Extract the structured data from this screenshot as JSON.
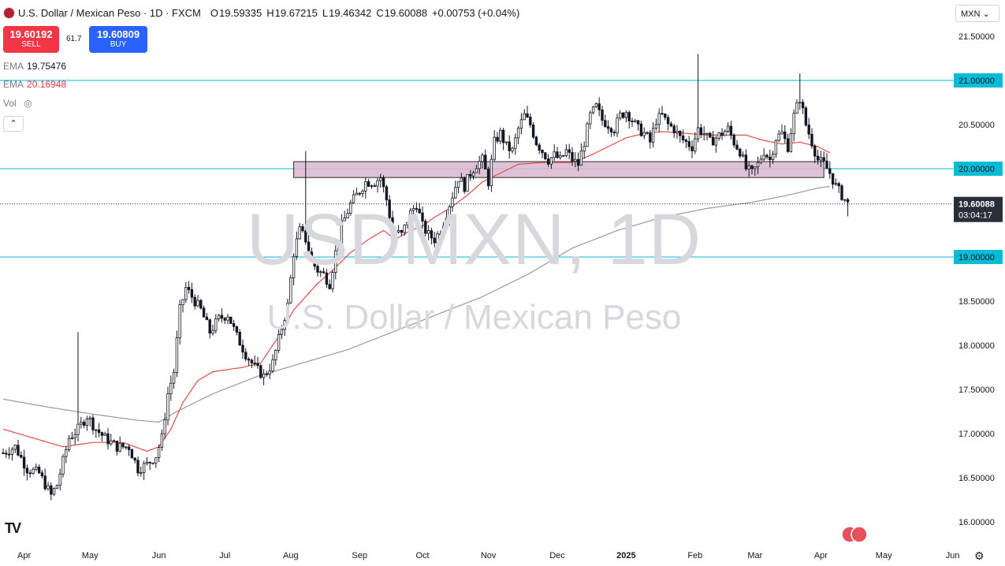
{
  "header": {
    "symbol_title": "U.S. Dollar / Mexican Peso · 1D · FXCM",
    "open_label": "O",
    "open": "19.59335",
    "high_label": "H",
    "high": "19.67215",
    "low_label": "L",
    "low": "19.46342",
    "close_label": "C",
    "close": "19.60088",
    "change": "+0.00753 (+0.04%)"
  },
  "trade": {
    "sell_price": "19.60192",
    "sell_label": "SELL",
    "spread": "61.7",
    "buy_price": "19.60809",
    "buy_label": "BUY"
  },
  "indicators": {
    "ema1_label": "EMA",
    "ema1_value": "19.75476",
    "ema2_label": "EMA",
    "ema2_value": "20.16948",
    "vol_label": "Vol",
    "ema2_color": "#f23645"
  },
  "currency_button": "MXN",
  "watermark": {
    "symbol": "USDMXN, 1D",
    "name": "U.S. Dollar / Mexican Peso"
  },
  "colors": {
    "up": "#26a69a",
    "candle": "#131722",
    "hline": "#00bcd4",
    "ema50": "#e04c4c",
    "ema200": "#9a9a9a",
    "box_fill": "#d9b7cf",
    "box_stroke": "#2a2a2a"
  },
  "chart_data": {
    "type": "candlestick",
    "title": "U.S. Dollar / Mexican Peso · 1D · FXCM",
    "ylim": [
      15.85,
      21.7
    ],
    "y_ticks": [
      "21.50000",
      "21.00000",
      "20.50000",
      "20.00000",
      "19.50000",
      "19.00000",
      "18.50000",
      "18.00000",
      "17.50000",
      "17.00000",
      "16.50000",
      "16.00000"
    ],
    "y_tick_values": [
      21.5,
      21.0,
      20.5,
      20.0,
      19.5,
      19.0,
      18.5,
      18.0,
      17.5,
      17.0,
      16.5,
      16.0
    ],
    "x_ticks": [
      "Apr",
      "May",
      "Jun",
      "Jul",
      "Aug",
      "Sep",
      "Oct",
      "Nov",
      "Dec",
      "2025",
      "Feb",
      "Mar",
      "Apr",
      "May",
      "Jun"
    ],
    "x_tick_bar_index": [
      7,
      29,
      52,
      74,
      96,
      119,
      140,
      162,
      185,
      208,
      231,
      251,
      273,
      294,
      317
    ],
    "last_price": "19.60088",
    "countdown": "03:04:17",
    "horizontal_levels": [
      {
        "value": 21.0,
        "label": "21.00000"
      },
      {
        "value": 20.0,
        "label": "20.00000"
      },
      {
        "value": 19.0,
        "label": "19.00000"
      }
    ],
    "zone": {
      "from_bar": 97,
      "to_bar": 274,
      "low": 19.9,
      "high": 20.08
    },
    "ema_fast_period": 50,
    "ema_slow_period": 200,
    "anchors": [
      [
        0,
        16.78
      ],
      [
        4,
        16.85
      ],
      [
        8,
        16.6
      ],
      [
        12,
        16.55
      ],
      [
        16,
        16.3
      ],
      [
        18,
        16.42
      ],
      [
        22,
        16.95
      ],
      [
        25,
        17.05
      ],
      [
        28,
        17.2
      ],
      [
        31,
        17.05
      ],
      [
        34,
        16.95
      ],
      [
        38,
        16.85
      ],
      [
        42,
        16.85
      ],
      [
        45,
        16.6
      ],
      [
        48,
        16.65
      ],
      [
        51,
        16.75
      ],
      [
        53,
        16.95
      ],
      [
        55,
        17.45
      ],
      [
        57,
        17.7
      ],
      [
        59,
        18.4
      ],
      [
        61,
        18.65
      ],
      [
        63,
        18.55
      ],
      [
        66,
        18.4
      ],
      [
        69,
        18.15
      ],
      [
        72,
        18.3
      ],
      [
        75,
        18.35
      ],
      [
        78,
        18.1
      ],
      [
        81,
        17.9
      ],
      [
        84,
        17.75
      ],
      [
        87,
        17.65
      ],
      [
        90,
        17.8
      ],
      [
        93,
        18.2
      ],
      [
        95,
        18.45
      ],
      [
        97,
        19.05
      ],
      [
        99,
        19.3
      ],
      [
        101,
        19.2
      ],
      [
        103,
        18.95
      ],
      [
        105,
        18.85
      ],
      [
        107,
        18.8
      ],
      [
        109,
        18.7
      ],
      [
        111,
        19.05
      ],
      [
        113,
        19.35
      ],
      [
        116,
        19.6
      ],
      [
        119,
        19.75
      ],
      [
        121,
        19.85
      ],
      [
        124,
        19.85
      ],
      [
        126,
        19.9
      ],
      [
        128,
        19.65
      ],
      [
        130,
        19.3
      ],
      [
        133,
        19.25
      ],
      [
        136,
        19.5
      ],
      [
        138,
        19.6
      ],
      [
        140,
        19.35
      ],
      [
        142,
        19.25
      ],
      [
        144,
        19.2
      ],
      [
        146,
        19.3
      ],
      [
        148,
        19.5
      ],
      [
        150,
        19.7
      ],
      [
        152,
        19.9
      ],
      [
        154,
        19.8
      ],
      [
        156,
        19.95
      ],
      [
        158,
        20.05
      ],
      [
        160,
        20.1
      ],
      [
        162,
        19.85
      ],
      [
        164,
        20.3
      ],
      [
        166,
        20.4
      ],
      [
        168,
        20.25
      ],
      [
        170,
        20.2
      ],
      [
        172,
        20.45
      ],
      [
        174,
        20.6
      ],
      [
        176,
        20.5
      ],
      [
        178,
        20.3
      ],
      [
        180,
        20.2
      ],
      [
        182,
        20.1
      ],
      [
        184,
        20.15
      ],
      [
        186,
        20.1
      ],
      [
        188,
        20.2
      ],
      [
        190,
        20.1
      ],
      [
        192,
        20.05
      ],
      [
        194,
        20.3
      ],
      [
        196,
        20.6
      ],
      [
        198,
        20.7
      ],
      [
        200,
        20.55
      ],
      [
        202,
        20.5
      ],
      [
        204,
        20.45
      ],
      [
        206,
        20.6
      ],
      [
        208,
        20.65
      ],
      [
        210,
        20.55
      ],
      [
        212,
        20.45
      ],
      [
        214,
        20.4
      ],
      [
        216,
        20.3
      ],
      [
        218,
        20.55
      ],
      [
        220,
        20.6
      ],
      [
        222,
        20.5
      ],
      [
        224,
        20.45
      ],
      [
        226,
        20.35
      ],
      [
        228,
        20.3
      ],
      [
        230,
        20.25
      ],
      [
        232,
        20.45
      ],
      [
        234,
        20.4
      ],
      [
        236,
        20.3
      ],
      [
        238,
        20.35
      ],
      [
        240,
        20.4
      ],
      [
        242,
        20.45
      ],
      [
        244,
        20.3
      ],
      [
        246,
        20.2
      ],
      [
        248,
        20.0
      ],
      [
        250,
        19.95
      ],
      [
        252,
        20.05
      ],
      [
        254,
        20.2
      ],
      [
        256,
        20.1
      ],
      [
        258,
        20.35
      ],
      [
        260,
        20.4
      ],
      [
        262,
        20.25
      ],
      [
        264,
        20.6
      ],
      [
        266,
        20.8
      ],
      [
        268,
        20.5
      ],
      [
        270,
        20.3
      ],
      [
        272,
        20.1
      ],
      [
        274,
        20.05
      ],
      [
        276,
        19.95
      ],
      [
        278,
        19.8
      ],
      [
        280,
        19.7
      ],
      [
        282,
        19.6
      ]
    ],
    "ema50_anchors": [
      [
        0,
        17.05
      ],
      [
        10,
        16.95
      ],
      [
        20,
        16.85
      ],
      [
        30,
        16.9
      ],
      [
        40,
        16.9
      ],
      [
        48,
        16.8
      ],
      [
        52,
        16.85
      ],
      [
        56,
        17.05
      ],
      [
        60,
        17.35
      ],
      [
        65,
        17.6
      ],
      [
        70,
        17.7
      ],
      [
        80,
        17.75
      ],
      [
        86,
        17.8
      ],
      [
        92,
        18.1
      ],
      [
        97,
        18.4
      ],
      [
        101,
        18.55
      ],
      [
        105,
        18.7
      ],
      [
        110,
        18.85
      ],
      [
        116,
        19.05
      ],
      [
        122,
        19.2
      ],
      [
        127,
        19.3
      ],
      [
        131,
        19.2
      ],
      [
        136,
        19.3
      ],
      [
        140,
        19.35
      ],
      [
        144,
        19.45
      ],
      [
        149,
        19.55
      ],
      [
        155,
        19.7
      ],
      [
        160,
        19.85
      ],
      [
        166,
        19.95
      ],
      [
        172,
        20.05
      ],
      [
        180,
        20.07
      ],
      [
        190,
        20.07
      ],
      [
        196,
        20.15
      ],
      [
        202,
        20.25
      ],
      [
        208,
        20.35
      ],
      [
        214,
        20.4
      ],
      [
        220,
        20.42
      ],
      [
        228,
        20.4
      ],
      [
        236,
        20.38
      ],
      [
        242,
        20.38
      ],
      [
        248,
        20.38
      ],
      [
        254,
        20.32
      ],
      [
        260,
        20.28
      ],
      [
        266,
        20.3
      ],
      [
        272,
        20.25
      ],
      [
        276,
        20.18
      ]
    ],
    "ema200_anchors": [
      [
        0,
        17.39
      ],
      [
        15,
        17.3
      ],
      [
        30,
        17.22
      ],
      [
        45,
        17.15
      ],
      [
        52,
        17.13
      ],
      [
        58,
        17.25
      ],
      [
        70,
        17.45
      ],
      [
        85,
        17.65
      ],
      [
        100,
        17.8
      ],
      [
        115,
        17.95
      ],
      [
        130,
        18.15
      ],
      [
        145,
        18.35
      ],
      [
        160,
        18.55
      ],
      [
        175,
        18.8
      ],
      [
        190,
        19.1
      ],
      [
        205,
        19.3
      ],
      [
        220,
        19.45
      ],
      [
        235,
        19.55
      ],
      [
        250,
        19.62
      ],
      [
        262,
        19.7
      ],
      [
        272,
        19.78
      ],
      [
        276,
        19.8
      ]
    ]
  }
}
